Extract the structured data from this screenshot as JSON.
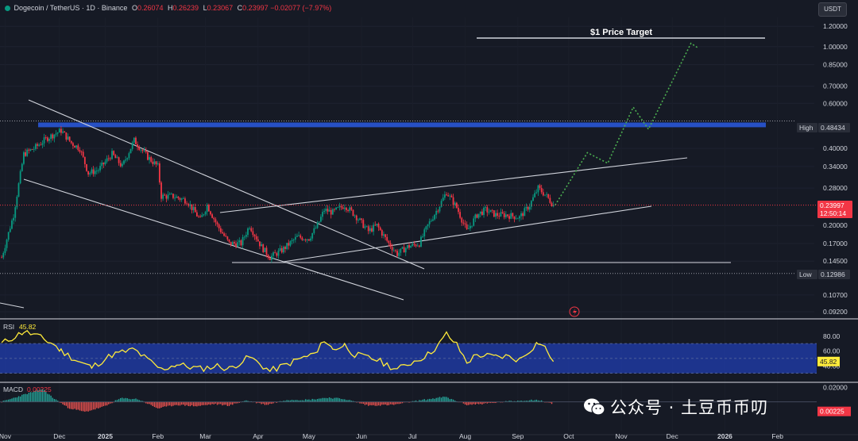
{
  "header": {
    "symbol": "Dogecoin / TetherUS · 1D · Binance",
    "open_label": "O",
    "open": "0.26074",
    "high_label": "H",
    "high": "0.26239",
    "low_label": "L",
    "low": "0.23067",
    "close_label": "C",
    "close": "0.23997",
    "change": "−0.02077 (−7.97%)"
  },
  "currency_button": "USDT",
  "annotations": {
    "target_label": "$1 Price Target",
    "high_tag": "High",
    "high_value": "0.48434",
    "low_tag": "Low",
    "low_value": "0.12986",
    "last_price": "0.23997",
    "countdown": "12:50:14"
  },
  "indicators": {
    "rsi_label": "RSI",
    "rsi_value": "45.82",
    "macd_label": "MACD",
    "macd_value": "0.00225"
  },
  "watermark": "公众号 · 土豆币币叨",
  "colors": {
    "bg": "#161a25",
    "up": "#089981",
    "down": "#f23645",
    "zone": "#2750c4",
    "rsi_line": "#ffeb3b",
    "projection": "#4caf50"
  },
  "chart_data": [
    {
      "type": "candlestick",
      "title": "Dogecoin / TetherUS · 1D · Binance",
      "scale": "log",
      "ylim": [
        0.0875,
        1.3
      ],
      "y_ticks": [
        "1.20000",
        "1.00000",
        "0.85000",
        "0.70000",
        "0.60000",
        "0.40000",
        "0.34000",
        "0.28000",
        "0.20000",
        "0.17000",
        "0.14500",
        "0.10700",
        "0.09200"
      ],
      "x_ticks": [
        "Nov",
        "Dec",
        "2025",
        "Feb",
        "Mar",
        "Apr",
        "May",
        "Jun",
        "Jul",
        "Aug",
        "Sep",
        "Oct",
        "Nov",
        "Dec",
        "2026",
        "Feb"
      ],
      "price_path": [
        [
          "2024-11-01",
          0.15
        ],
        [
          "2024-11-08",
          0.22
        ],
        [
          "2024-11-14",
          0.38
        ],
        [
          "2024-11-20",
          0.4
        ],
        [
          "2024-11-28",
          0.44
        ],
        [
          "2024-12-06",
          0.47
        ],
        [
          "2024-12-12",
          0.42
        ],
        [
          "2024-12-17",
          0.4
        ],
        [
          "2024-12-22",
          0.32
        ],
        [
          "2024-12-28",
          0.33
        ],
        [
          "2025-01-05",
          0.38
        ],
        [
          "2025-01-11",
          0.34
        ],
        [
          "2025-01-18",
          0.43
        ],
        [
          "2025-01-26",
          0.37
        ],
        [
          "2025-02-01",
          0.34
        ],
        [
          "2025-02-03",
          0.26
        ],
        [
          "2025-02-10",
          0.26
        ],
        [
          "2025-02-18",
          0.25
        ],
        [
          "2025-02-26",
          0.21
        ],
        [
          "2025-03-02",
          0.24
        ],
        [
          "2025-03-08",
          0.2
        ],
        [
          "2025-03-15",
          0.17
        ],
        [
          "2025-03-22",
          0.17
        ],
        [
          "2025-03-27",
          0.2
        ],
        [
          "2025-04-03",
          0.165
        ],
        [
          "2025-04-08",
          0.15
        ],
        [
          "2025-04-15",
          0.16
        ],
        [
          "2025-04-24",
          0.18
        ],
        [
          "2025-05-01",
          0.178
        ],
        [
          "2025-05-06",
          0.2
        ],
        [
          "2025-05-10",
          0.23
        ],
        [
          "2025-05-15",
          0.225
        ],
        [
          "2025-05-22",
          0.24
        ],
        [
          "2025-05-28",
          0.22
        ],
        [
          "2025-06-05",
          0.19
        ],
        [
          "2025-06-10",
          0.2
        ],
        [
          "2025-06-17",
          0.17
        ],
        [
          "2025-06-22",
          0.155
        ],
        [
          "2025-06-28",
          0.165
        ],
        [
          "2025-07-05",
          0.17
        ],
        [
          "2025-07-10",
          0.2
        ],
        [
          "2025-07-17",
          0.24
        ],
        [
          "2025-07-21",
          0.27
        ],
        [
          "2025-07-27",
          0.235
        ],
        [
          "2025-08-02",
          0.19
        ],
        [
          "2025-08-08",
          0.22
        ],
        [
          "2025-08-13",
          0.23
        ],
        [
          "2025-08-19",
          0.22
        ],
        [
          "2025-08-25",
          0.22
        ],
        [
          "2025-09-02",
          0.215
        ],
        [
          "2025-09-08",
          0.24
        ],
        [
          "2025-09-13",
          0.28
        ],
        [
          "2025-09-18",
          0.26
        ],
        [
          "2025-09-22",
          0.24
        ]
      ],
      "high_zone": [
        0.484,
        0.505
      ],
      "support_low": 0.12986,
      "target": 1.05,
      "projection": [
        [
          "2025-09-23",
          0.23997
        ],
        [
          "2025-10-12",
          0.385
        ],
        [
          "2025-10-24",
          0.35
        ],
        [
          "2025-11-08",
          0.58
        ],
        [
          "2025-11-17",
          0.475
        ],
        [
          "2025-12-12",
          1.03
        ],
        [
          "2025-12-16",
          0.99
        ]
      ]
    },
    {
      "type": "line",
      "title": "RSI",
      "ylim": [
        20,
        100
      ],
      "y_ticks": [
        "80.00",
        "60.00",
        "40.00"
      ],
      "band": [
        30,
        70
      ],
      "values": [
        [
          "2024-11-01",
          70
        ],
        [
          "2024-11-14",
          86
        ],
        [
          "2024-11-20",
          82
        ],
        [
          "2024-12-01",
          70
        ],
        [
          "2024-12-06",
          60
        ],
        [
          "2024-12-17",
          45
        ],
        [
          "2024-12-24",
          38
        ],
        [
          "2025-01-05",
          55
        ],
        [
          "2025-01-18",
          62
        ],
        [
          "2025-01-26",
          48
        ],
        [
          "2025-02-03",
          35
        ],
        [
          "2025-02-12",
          42
        ],
        [
          "2025-02-26",
          36
        ],
        [
          "2025-03-08",
          40
        ],
        [
          "2025-03-15",
          36
        ],
        [
          "2025-03-27",
          52
        ],
        [
          "2025-04-08",
          33
        ],
        [
          "2025-04-18",
          42
        ],
        [
          "2025-04-24",
          48
        ],
        [
          "2025-05-06",
          58
        ],
        [
          "2025-05-10",
          76
        ],
        [
          "2025-05-15",
          62
        ],
        [
          "2025-05-22",
          68
        ],
        [
          "2025-05-28",
          55
        ],
        [
          "2025-06-10",
          48
        ],
        [
          "2025-06-22",
          35
        ],
        [
          "2025-06-28",
          42
        ],
        [
          "2025-07-10",
          55
        ],
        [
          "2025-07-17",
          70
        ],
        [
          "2025-07-21",
          83
        ],
        [
          "2025-07-27",
          68
        ],
        [
          "2025-08-02",
          45
        ],
        [
          "2025-08-08",
          55
        ],
        [
          "2025-08-19",
          52
        ],
        [
          "2025-08-25",
          53
        ],
        [
          "2025-09-02",
          48
        ],
        [
          "2025-09-13",
          72
        ],
        [
          "2025-09-18",
          62
        ],
        [
          "2025-09-22",
          45.82
        ]
      ]
    },
    {
      "type": "bar",
      "title": "MACD",
      "ylim": [
        -0.04,
        0.025
      ],
      "y_ticks": [
        "0.02000"
      ],
      "histogram": [
        [
          "2024-11-01",
          0.0
        ],
        [
          "2024-11-14",
          0.01
        ],
        [
          "2024-11-25",
          0.018
        ],
        [
          "2024-12-01",
          0.006
        ],
        [
          "2024-12-10",
          -0.008
        ],
        [
          "2024-12-20",
          -0.014
        ],
        [
          "2025-01-01",
          -0.006
        ],
        [
          "2025-01-10",
          0.005
        ],
        [
          "2025-01-20",
          0.004
        ],
        [
          "2025-02-01",
          -0.009
        ],
        [
          "2025-02-12",
          -0.004
        ],
        [
          "2025-02-24",
          -0.006
        ],
        [
          "2025-03-06",
          -0.003
        ],
        [
          "2025-03-15",
          -0.005
        ],
        [
          "2025-03-25",
          0.002
        ],
        [
          "2025-04-06",
          -0.004
        ],
        [
          "2025-04-18",
          0.003
        ],
        [
          "2025-05-01",
          0.003
        ],
        [
          "2025-05-12",
          0.006
        ],
        [
          "2025-05-22",
          0.004
        ],
        [
          "2025-06-05",
          -0.005
        ],
        [
          "2025-06-20",
          -0.004
        ],
        [
          "2025-07-05",
          0.002
        ],
        [
          "2025-07-20",
          0.007
        ],
        [
          "2025-08-02",
          -0.004
        ],
        [
          "2025-08-15",
          -0.002
        ],
        [
          "2025-08-28",
          0.001
        ],
        [
          "2025-09-12",
          0.003
        ],
        [
          "2025-09-22",
          -0.003
        ]
      ]
    }
  ]
}
